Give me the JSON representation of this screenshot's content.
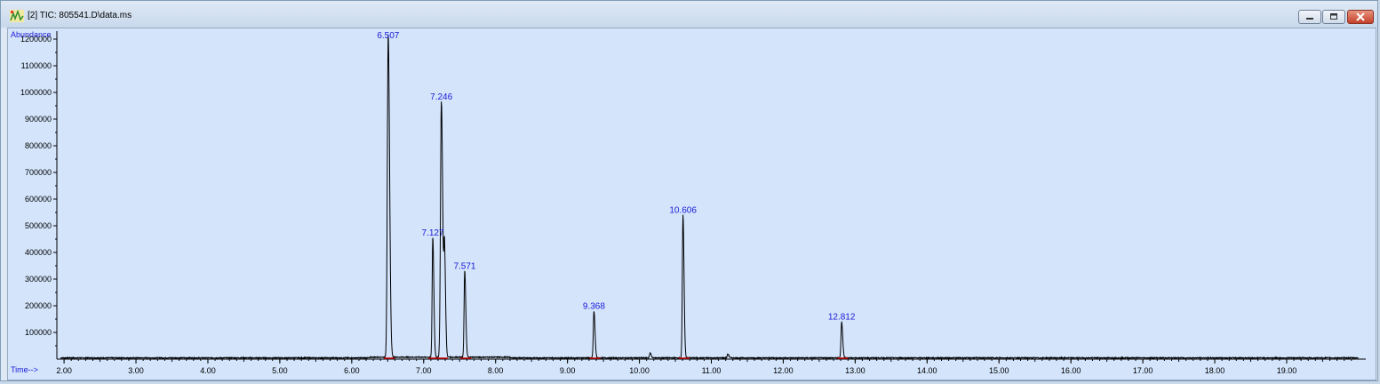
{
  "window": {
    "title": "[2] TIC: 805541.D\\data.ms",
    "icon": "chromatogram-app-icon",
    "controls": [
      "minimize",
      "restore",
      "close"
    ]
  },
  "colors": {
    "plot_bg": "#d3e4fb",
    "trace": "#000000",
    "peak_label": "#1a1ad6",
    "baseline_marker": "#cc0000"
  },
  "chart_data": {
    "type": "line",
    "title": "",
    "ylabel": "Abundance",
    "xlabel": "Time-->",
    "xlim": [
      1.9,
      20.1
    ],
    "ylim": [
      0,
      1230000
    ],
    "x_ticks": [
      "2.00",
      "3.00",
      "4.00",
      "5.00",
      "6.00",
      "7.00",
      "8.00",
      "9.00",
      "10.00",
      "11.00",
      "12.00",
      "13.00",
      "14.00",
      "15.00",
      "16.00",
      "17.00",
      "18.00",
      "19.00"
    ],
    "y_ticks": [
      "100000",
      "200000",
      "300000",
      "400000",
      "500000",
      "600000",
      "700000",
      "800000",
      "900000",
      "1000000",
      "1100000",
      "1200000"
    ],
    "peaks": [
      {
        "label": "6.507",
        "rt": 6.507,
        "abundance": 1210000
      },
      {
        "label": "7.127",
        "rt": 7.127,
        "abundance": 450000
      },
      {
        "label": "7.246",
        "rt": 7.246,
        "abundance": 960000
      },
      {
        "label": "7.571",
        "rt": 7.571,
        "abundance": 325000
      },
      {
        "label": "9.368",
        "rt": 9.368,
        "abundance": 175000
      },
      {
        "label": "10.606",
        "rt": 10.606,
        "abundance": 535000
      },
      {
        "label": "12.812",
        "rt": 12.812,
        "abundance": 135000
      }
    ],
    "minor_peaks": [
      {
        "rt": 7.29,
        "abundance": 380000
      },
      {
        "rt": 10.15,
        "abundance": 18000
      },
      {
        "rt": 11.23,
        "abundance": 14000
      }
    ]
  }
}
